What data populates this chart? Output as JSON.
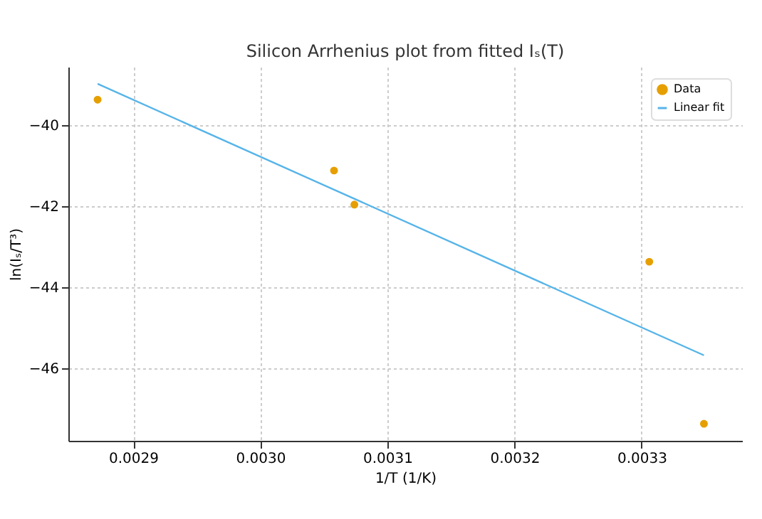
{
  "chart_data": {
    "type": "scatter",
    "title": "Silicon Arrhenius plot from fitted Iₛ(T)",
    "xlabel": "1/T (1/K)",
    "ylabel": "ln(Iₛ/T³)",
    "series": [
      {
        "name": "Data",
        "marker": "circle",
        "color": "#e69f00",
        "x": [
          0.002872,
          0.003058,
          0.003074,
          0.003306,
          0.003349
        ],
        "values": [
          -39.37,
          -41.12,
          -41.96,
          -43.37,
          -47.37
        ]
      },
      {
        "name": "Linear fit",
        "type": "line",
        "line_style": "solid",
        "color": "#56b4e9",
        "x": [
          0.002872,
          0.003349
        ],
        "values": [
          -38.98,
          -45.68
        ]
      }
    ],
    "xlim": [
      0.002849,
      0.003379
    ],
    "xticks": [
      {
        "value": 0.0029,
        "label": "0.0029"
      },
      {
        "value": 0.003,
        "label": "0.0030"
      },
      {
        "value": 0.0031,
        "label": "0.0031"
      },
      {
        "value": 0.0032,
        "label": "0.0032"
      },
      {
        "value": 0.0033,
        "label": "0.0033"
      }
    ],
    "ylim": [
      -47.79,
      -38.56
    ],
    "yticks": [
      -46,
      -44,
      -42,
      -40
    ],
    "grid": true,
    "legend": "top right"
  }
}
